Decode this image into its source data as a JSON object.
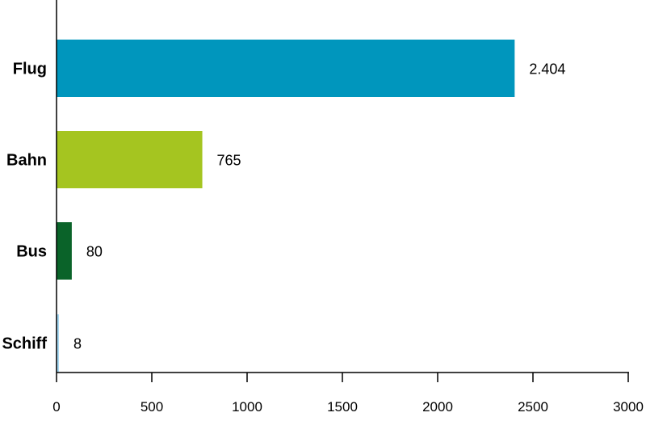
{
  "chart_data": {
    "type": "bar",
    "orientation": "horizontal",
    "title": "",
    "xlabel": "",
    "ylabel": "",
    "categories": [
      "Flug",
      "Bahn",
      "Bus",
      "Schiff"
    ],
    "values": [
      2404,
      765,
      80,
      8
    ],
    "value_labels": [
      "2.404",
      "765",
      "80",
      "8"
    ],
    "colors": [
      "#0096bd",
      "#a5c520",
      "#0a6329",
      "#a8d9f2"
    ],
    "xlim": [
      0,
      3000
    ],
    "xticks": [
      0,
      500,
      1000,
      1500,
      2000,
      2500,
      3000
    ],
    "xtick_labels": [
      "0",
      "500",
      "1000",
      "1500",
      "2000",
      "2500",
      "3000"
    ],
    "grid": false,
    "legend": "none"
  }
}
